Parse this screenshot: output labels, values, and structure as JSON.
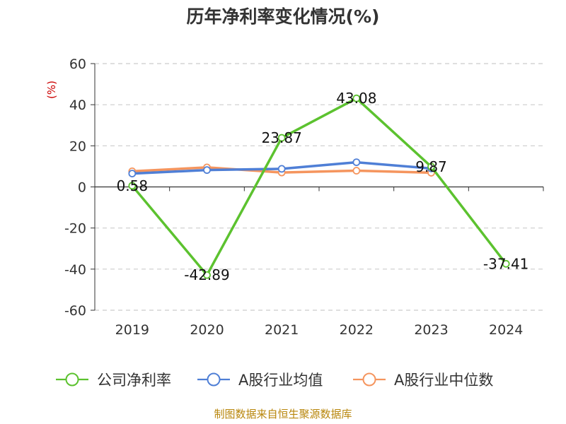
{
  "chart_data": {
    "type": "line",
    "title": "历年净利率变化情况(%)",
    "ylabel": "(%)",
    "xlabel": "",
    "categories": [
      "2019",
      "2020",
      "2021",
      "2022",
      "2023",
      "2024"
    ],
    "ylim": [
      -60,
      60
    ],
    "yticks": [
      60,
      40,
      20,
      0,
      -20,
      -40,
      -60
    ],
    "grid": true,
    "legend_position": "bottom",
    "series": [
      {
        "name": "公司净利率",
        "color": "#5cc22f",
        "values": [
          0.58,
          -42.89,
          23.87,
          43.08,
          9.87,
          -37.41
        ],
        "labels": [
          "0.58",
          "-42.89",
          "23.87",
          "43.08",
          "9.87",
          "-37.41"
        ]
      },
      {
        "name": "A股行业均值",
        "color": "#4f7fd6",
        "values": [
          6.5,
          8.2,
          8.8,
          12.0,
          9.0,
          null
        ]
      },
      {
        "name": "A股行业中位数",
        "color": "#f5955e",
        "values": [
          7.6,
          9.5,
          7.0,
          7.9,
          6.9,
          null
        ]
      }
    ],
    "source": "制图数据来自恒生聚源数据库"
  }
}
